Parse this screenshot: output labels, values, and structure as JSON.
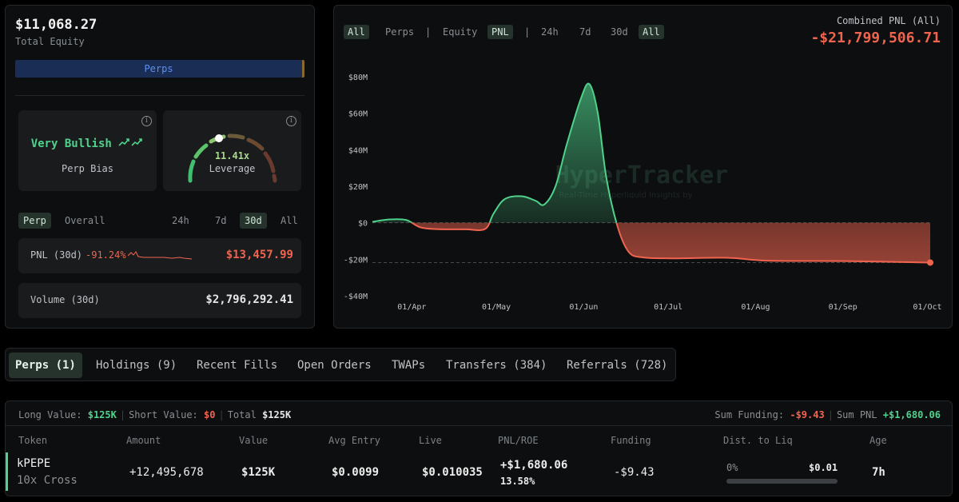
{
  "account": {
    "equity": "$11,068.27",
    "equity_label": "Total Equity",
    "perps_bar_label": "Perps",
    "bias": "Very Bullish",
    "bias_label": "Perp Bias",
    "leverage": "11.41x",
    "leverage_label": "Leverage",
    "tabs": [
      "Perp",
      "Overall",
      "24h",
      "7d",
      "30d",
      "All"
    ],
    "pnl_label": "PNL (30d)",
    "pnl_pct": "-91.24%",
    "pnl_value": "$13,457.99",
    "volume_label": "Volume (30d)",
    "volume_value": "$2,796,292.41",
    "colors": {
      "bullish": "#4fd28c",
      "negative": "#f0644f",
      "perps_bar": "#1a2e55"
    }
  },
  "chart_panel": {
    "tabs_left": [
      "All",
      "Perps",
      "Equity"
    ],
    "tabs_right": [
      "PNL",
      "24h",
      "7d",
      "30d",
      "All"
    ],
    "combined_label": "Combined PNL (All)",
    "combined_value": "-$21,799,506.71",
    "watermark": "HyperTracker",
    "watermark_sub": "Real-Time Hyperliquid Insights by"
  },
  "chart_data": {
    "type": "area",
    "xlabel": "",
    "ylabel": "",
    "ylim": [
      -40,
      80
    ],
    "yticks": [
      80,
      60,
      40,
      20,
      0,
      -20,
      -40
    ],
    "ytick_labels": [
      "$80M",
      "$60M",
      "$40M",
      "$20M",
      "$0",
      "-$20M",
      "-$40M"
    ],
    "x_ticks": [
      "01/Apr",
      "01/May",
      "01/Jun",
      "01/Jul",
      "01/Aug",
      "01/Sep",
      "01/Oct"
    ],
    "x_range": [
      "2025-03-18",
      "2025-10-02"
    ],
    "reference_lines": [
      0,
      -21.8
    ],
    "series": [
      {
        "values_in": "millions of USD",
        "points": [
          [
            "2025-03-18",
            0.5
          ],
          [
            "2025-03-24",
            1.8
          ],
          [
            "2025-03-30",
            1.5
          ],
          [
            "2025-04-04",
            -2.5
          ],
          [
            "2025-04-10",
            -3.5
          ],
          [
            "2025-04-20",
            -3.6
          ],
          [
            "2025-04-27",
            -3.4
          ],
          [
            "2025-04-30",
            5
          ],
          [
            "2025-05-04",
            13
          ],
          [
            "2025-05-10",
            14.5
          ],
          [
            "2025-05-15",
            12
          ],
          [
            "2025-05-18",
            10
          ],
          [
            "2025-05-22",
            20
          ],
          [
            "2025-05-26",
            43
          ],
          [
            "2025-05-31",
            68
          ],
          [
            "2025-06-03",
            76
          ],
          [
            "2025-06-06",
            60
          ],
          [
            "2025-06-09",
            25
          ],
          [
            "2025-06-13",
            -2
          ],
          [
            "2025-06-17",
            -16
          ],
          [
            "2025-06-22",
            -19
          ],
          [
            "2025-07-02",
            -19.5
          ],
          [
            "2025-07-22",
            -19.2
          ],
          [
            "2025-08-05",
            -20.8
          ],
          [
            "2025-09-01",
            -21
          ],
          [
            "2025-10-02",
            -21.8
          ]
        ]
      }
    ]
  },
  "bottom_tabs": [
    "Perps (1)",
    "Holdings (9)",
    "Recent Fills",
    "Open Orders",
    "TWAPs",
    "Transfers (384)",
    "Referrals (728)"
  ],
  "positions": {
    "summary": {
      "long_label": "Long Value:",
      "long_value": "$125K",
      "short_label": "Short Value:",
      "short_value": "$0",
      "total_label": "Total",
      "total_value": "$125K",
      "funding_label": "Sum Funding:",
      "funding_value": "-$9.43",
      "sum_pnl_label": "Sum PNL",
      "sum_pnl_value": "+$1,680.06"
    },
    "columns": [
      "Token",
      "Amount",
      "Value",
      "Avg Entry",
      "Live",
      "PNL/ROE",
      "Funding",
      "Dist. to Liq",
      "Age"
    ],
    "rows": [
      {
        "token": "kPEPE",
        "mode": "10x Cross",
        "amount": "+12,495,678",
        "value": "$125K",
        "avg_entry": "$0.0099",
        "live": "$0.010035",
        "pnl": "+$1,680.06",
        "roe": "13.58%",
        "funding": "-$9.43",
        "dist_pct": "0%",
        "liq_price": "$0.01",
        "dist_fraction": 0,
        "age": "7h"
      }
    ]
  }
}
